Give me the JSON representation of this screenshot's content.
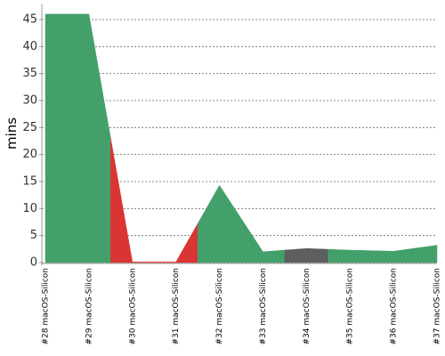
{
  "chart_data": {
    "type": "area",
    "y_label": "mins",
    "categories": [
      "#28 macOS-Silicon",
      "#29 macOS-Silicon",
      "#30 macOS-Silicon",
      "#31 macOS-Silicon",
      "#32 macOS-Silicon",
      "#33 macOS-Silicon",
      "#34 macOS-Silicon",
      "#35 macOS-Silicon",
      "#36 macOS-Silicon",
      "#37 macOS-Silicon"
    ],
    "values": [
      46,
      46,
      0.1,
      0.1,
      14.3,
      2,
      2.6,
      2.3,
      2.1,
      3.2
    ],
    "colors": [
      "#44a06b",
      "#44a06b",
      "#d93535",
      "#d93535",
      "#44a06b",
      "#44a06b",
      "#5e5e5e",
      "#44a06b",
      "#44a06b",
      "#44a06b"
    ],
    "ylim": [
      0,
      47.8
    ],
    "yticks": [
      0,
      5,
      10,
      15,
      20,
      25,
      30,
      35,
      40,
      45
    ],
    "grid": true
  }
}
